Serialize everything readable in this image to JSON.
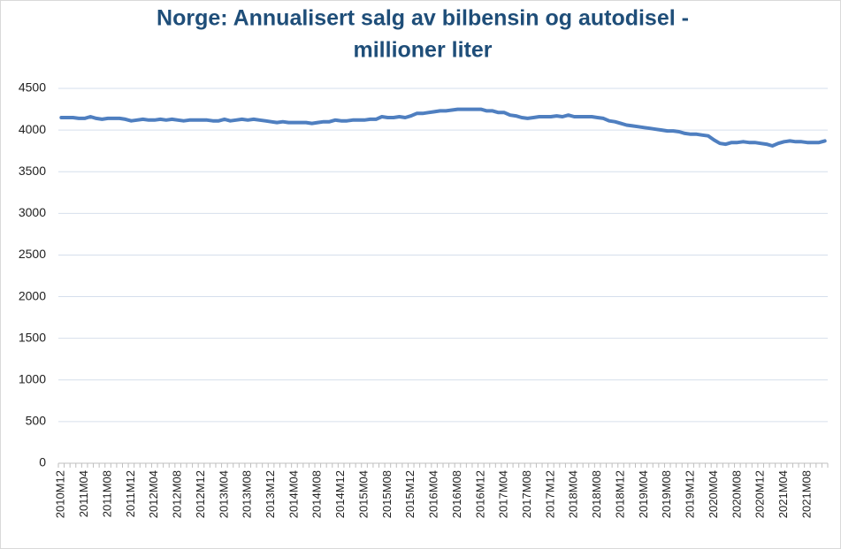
{
  "chart_data": {
    "type": "line",
    "title": [
      "Norge: Annualisert salg av bilbensin og autodisel -",
      "millioner liter"
    ],
    "categories": [
      "2010M12",
      null,
      null,
      null,
      "2011M04",
      null,
      null,
      null,
      "2011M08",
      null,
      null,
      null,
      "2011M12",
      null,
      null,
      null,
      "2012M04",
      null,
      null,
      null,
      "2012M08",
      null,
      null,
      null,
      "2012M12",
      null,
      null,
      null,
      "2013M04",
      null,
      null,
      null,
      "2013M08",
      null,
      null,
      null,
      "2013M12",
      null,
      null,
      null,
      "2014M04",
      null,
      null,
      null,
      "2014M08",
      null,
      null,
      null,
      "2014M12",
      null,
      null,
      null,
      "2015M04",
      null,
      null,
      null,
      "2015M08",
      null,
      null,
      null,
      "2015M12",
      null,
      null,
      null,
      "2016M04",
      null,
      null,
      null,
      "2016M08",
      null,
      null,
      null,
      "2016M12",
      null,
      null,
      null,
      "2017M04",
      null,
      null,
      null,
      "2017M08",
      null,
      null,
      null,
      "2017M12",
      null,
      null,
      null,
      "2018M04",
      null,
      null,
      null,
      "2018M08",
      null,
      null,
      null,
      "2018M12",
      null,
      null,
      null,
      "2019M04",
      null,
      null,
      null,
      "2019M08",
      null,
      null,
      null,
      "2019M12",
      null,
      null,
      null,
      "2020M04",
      null,
      null,
      null,
      "2020M08",
      null,
      null,
      null,
      "2020M12",
      null,
      null,
      null,
      "2021M04",
      null,
      null,
      null,
      "2021M08",
      null,
      null,
      null
    ],
    "values": [
      4150,
      4150,
      4150,
      4140,
      4140,
      4160,
      4140,
      4130,
      4140,
      4140,
      4140,
      4130,
      4110,
      4120,
      4130,
      4120,
      4120,
      4130,
      4120,
      4130,
      4120,
      4110,
      4120,
      4120,
      4120,
      4120,
      4110,
      4110,
      4130,
      4110,
      4120,
      4130,
      4120,
      4130,
      4120,
      4110,
      4100,
      4090,
      4100,
      4090,
      4090,
      4090,
      4090,
      4080,
      4090,
      4100,
      4100,
      4120,
      4110,
      4110,
      4120,
      4120,
      4120,
      4130,
      4130,
      4160,
      4150,
      4150,
      4160,
      4150,
      4170,
      4200,
      4200,
      4210,
      4220,
      4230,
      4230,
      4240,
      4250,
      4250,
      4250,
      4250,
      4250,
      4230,
      4230,
      4210,
      4210,
      4180,
      4170,
      4150,
      4140,
      4150,
      4160,
      4160,
      4160,
      4170,
      4160,
      4180,
      4160,
      4160,
      4160,
      4160,
      4150,
      4140,
      4110,
      4100,
      4080,
      4060,
      4050,
      4040,
      4030,
      4020,
      4010,
      4000,
      3990,
      3990,
      3980,
      3960,
      3950,
      3950,
      3940,
      3930,
      3880,
      3840,
      3830,
      3850,
      3850,
      3860,
      3850,
      3850,
      3840,
      3830,
      3810,
      3840,
      3860,
      3870,
      3860,
      3860,
      3850,
      3850,
      3850,
      3870
    ],
    "color": "#4f7fc0",
    "ylim": [
      0,
      4500
    ],
    "yticks": [
      0,
      500,
      1000,
      1500,
      2000,
      2500,
      3000,
      3500,
      4000,
      4500
    ],
    "grid": true
  }
}
